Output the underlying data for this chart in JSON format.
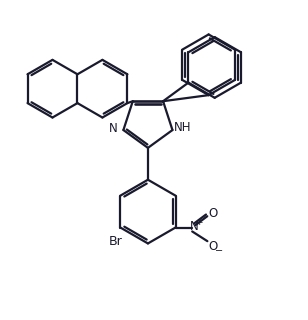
{
  "line_color": "#1a1a2e",
  "line_width": 1.6,
  "bg_color": "#ffffff",
  "font_size_labels": 8.5,
  "figsize": [
    3.08,
    3.2
  ],
  "dpi": 100,
  "xlim": [
    0,
    10
  ],
  "ylim": [
    0,
    10.5
  ]
}
